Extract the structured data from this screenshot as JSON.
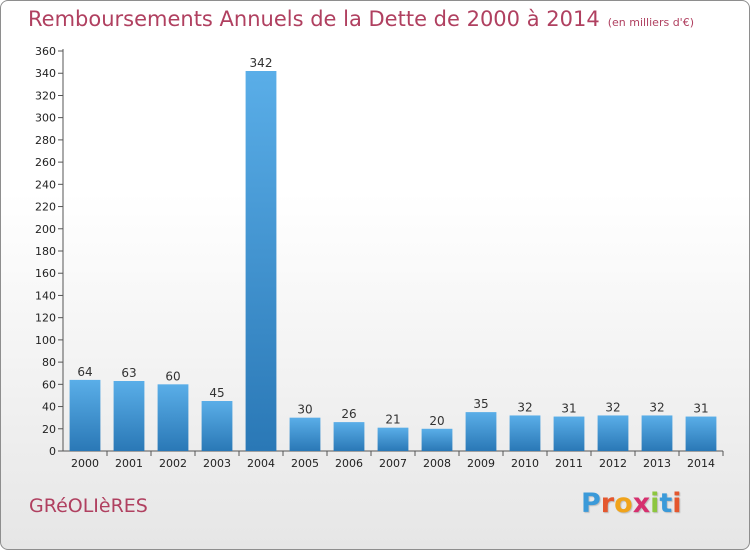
{
  "header": {
    "title": "Remboursements Annuels de la Dette de 2000 à 2014",
    "unit": "(en milliers d'€)"
  },
  "footer": {
    "commune": "GRéOLIèRES",
    "logo": {
      "letters": [
        "P",
        "r",
        "o",
        "x",
        "i",
        "t",
        "i"
      ],
      "colors": [
        "#3b9ad9",
        "#e4572e",
        "#f0a31a",
        "#d6306e",
        "#8dc63f",
        "#3b9ad9",
        "#e4572e"
      ]
    }
  },
  "chart_data": {
    "type": "bar",
    "title": "Remboursements Annuels de la Dette de 2000 à 2014",
    "subtitle": "(en milliers d'€)",
    "xlabel": "",
    "ylabel": "",
    "categories": [
      "2000",
      "2001",
      "2002",
      "2003",
      "2004",
      "2005",
      "2006",
      "2007",
      "2008",
      "2009",
      "2010",
      "2011",
      "2012",
      "2013",
      "2014"
    ],
    "values": [
      64,
      63,
      60,
      45,
      342,
      30,
      26,
      21,
      20,
      35,
      32,
      31,
      32,
      32,
      31
    ],
    "ylim": [
      0,
      360
    ],
    "ytick_step": 20,
    "grid": false,
    "bar_color_top": "#5aaee8",
    "bar_color_bottom": "#2a78b6",
    "axis_color": "#555555"
  }
}
